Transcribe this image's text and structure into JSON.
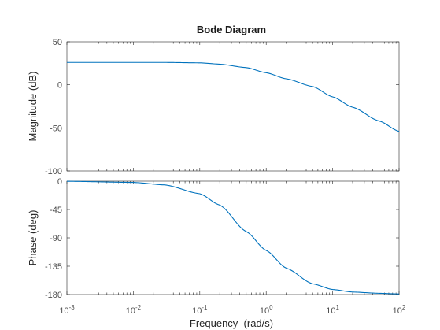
{
  "chart_data": {
    "type": "line",
    "title": "Bode Diagram",
    "xlabel": "Frequency  (rad/s)",
    "xscale": "log",
    "xlim": [
      0.001,
      100
    ],
    "grid": false,
    "line_color": "#0072bd",
    "x_ticks": [
      {
        "value": 0.001,
        "base": "10",
        "exp": "-3"
      },
      {
        "value": 0.01,
        "base": "10",
        "exp": "-2"
      },
      {
        "value": 0.1,
        "base": "10",
        "exp": "-1"
      },
      {
        "value": 1,
        "base": "10",
        "exp": "0"
      },
      {
        "value": 10,
        "base": "10",
        "exp": "1"
      },
      {
        "value": 100,
        "base": "10",
        "exp": "2"
      }
    ],
    "panels": [
      {
        "ylabel": "Magnitude (dB)",
        "ylim": [
          -100,
          50
        ],
        "yticks": [
          {
            "value": 50,
            "label": "50"
          },
          {
            "value": 0,
            "label": "0"
          },
          {
            "value": -50,
            "label": "-50"
          },
          {
            "value": -100,
            "label": "-100"
          }
        ],
        "x": [
          0.001,
          0.01,
          0.03,
          0.1,
          0.2,
          0.5,
          1,
          2,
          5,
          10,
          20,
          50,
          100
        ],
        "values": [
          26,
          26,
          26,
          25.5,
          24,
          20,
          14,
          7,
          -2,
          -14,
          -26,
          -42,
          -54
        ]
      },
      {
        "ylabel": "Phase (deg)",
        "ylim": [
          -180,
          0
        ],
        "yticks": [
          {
            "value": 0,
            "label": "0"
          },
          {
            "value": -45,
            "label": "-45"
          },
          {
            "value": -90,
            "label": "-90"
          },
          {
            "value": -135,
            "label": "-135"
          },
          {
            "value": -180,
            "label": "-180"
          }
        ],
        "x": [
          0.001,
          0.01,
          0.03,
          0.1,
          0.2,
          0.5,
          1,
          2,
          5,
          10,
          20,
          50,
          100
        ],
        "values": [
          -0.2,
          -2,
          -6,
          -20,
          -38,
          -80,
          -110,
          -138,
          -163,
          -172,
          -176,
          -178,
          -179
        ]
      }
    ]
  }
}
